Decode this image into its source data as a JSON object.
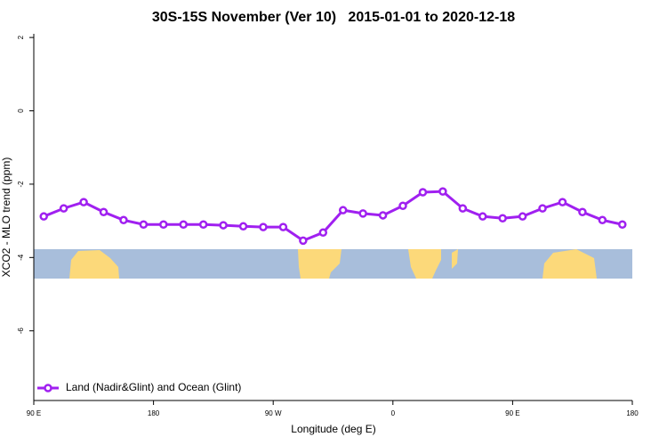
{
  "chart_data": {
    "type": "line",
    "title": "30S-15S November (Ver 10)   2015-01-01 to 2020-12-18",
    "xlabel": "Longitude (deg E)",
    "ylabel": "XCO2 - MLO trend (ppm)",
    "x": [
      97.5,
      112.5,
      127.5,
      142.5,
      157.5,
      172.5,
      187.5,
      202.5,
      217.5,
      232.5,
      247.5,
      262.5,
      277.5,
      292.5,
      307.5,
      322.5,
      337.5,
      352.5,
      367.5,
      382.5,
      397.5,
      412.5,
      427.5,
      442.5,
      457.5,
      472.5,
      487.5,
      502.5,
      517.5,
      532.5
    ],
    "series": [
      {
        "name": "Land (Nadir&Glint) and Ocean (Glint)",
        "color": "#a020f0",
        "values": [
          -2.88,
          -2.66,
          -2.49,
          -2.76,
          -2.98,
          -3.1,
          -3.1,
          -3.1,
          -3.1,
          -3.12,
          -3.15,
          -3.17,
          -3.17,
          -3.54,
          -3.32,
          -2.71,
          -2.8,
          -2.85,
          -2.59,
          -2.22,
          -2.2,
          -2.66,
          -2.88,
          -2.93,
          -2.88,
          -2.66,
          -2.49,
          -2.76,
          -2.98,
          -3.1
        ]
      }
    ],
    "xlim": [
      90,
      540
    ],
    "xticks": [
      {
        "value": 90,
        "label": "90 E"
      },
      {
        "value": 180,
        "label": "180"
      },
      {
        "value": 270,
        "label": "90 W"
      },
      {
        "value": 360,
        "label": "0"
      },
      {
        "value": 450,
        "label": "90 E"
      },
      {
        "value": 540,
        "label": "180"
      }
    ],
    "ylim": [
      -7.9,
      2.1
    ],
    "yticks": [
      -6,
      -4,
      -2,
      0,
      2
    ],
    "legend": "bottom-left",
    "grid": false
  }
}
